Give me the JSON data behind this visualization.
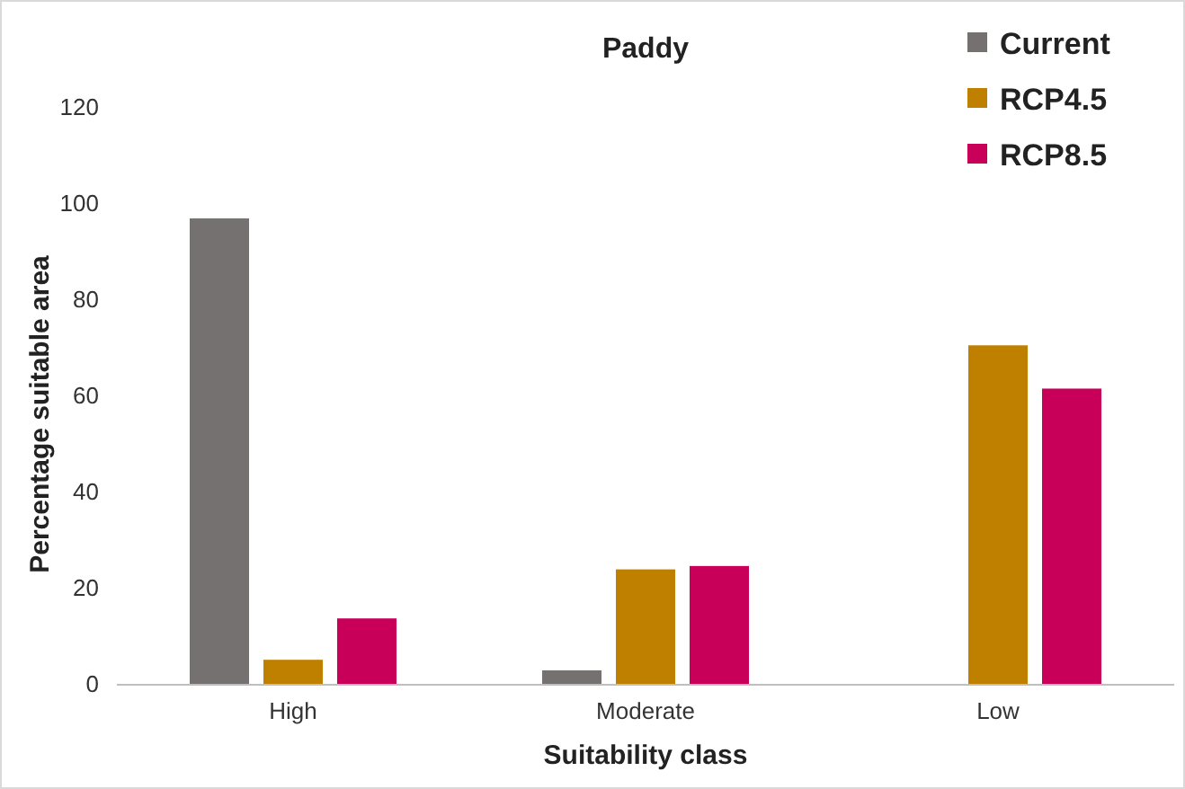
{
  "chart_data": {
    "type": "bar",
    "title": "Paddy",
    "xlabel": "Suitability class",
    "ylabel": "Percentage suitable area",
    "categories": [
      "High",
      "Moderate",
      "Low"
    ],
    "series": [
      {
        "name": "Current",
        "color": "#767171",
        "values": [
          97,
          3,
          0
        ]
      },
      {
        "name": "RCP4.5",
        "color": "#bf8000",
        "values": [
          5.2,
          24,
          70.6
        ]
      },
      {
        "name": "RCP8.5",
        "color": "#c9005a",
        "values": [
          13.8,
          24.7,
          61.6
        ]
      }
    ],
    "ylim": [
      0,
      120
    ],
    "yticks": [
      0,
      20,
      40,
      60,
      80,
      100,
      120
    ],
    "grid": false,
    "legend": "top right"
  }
}
